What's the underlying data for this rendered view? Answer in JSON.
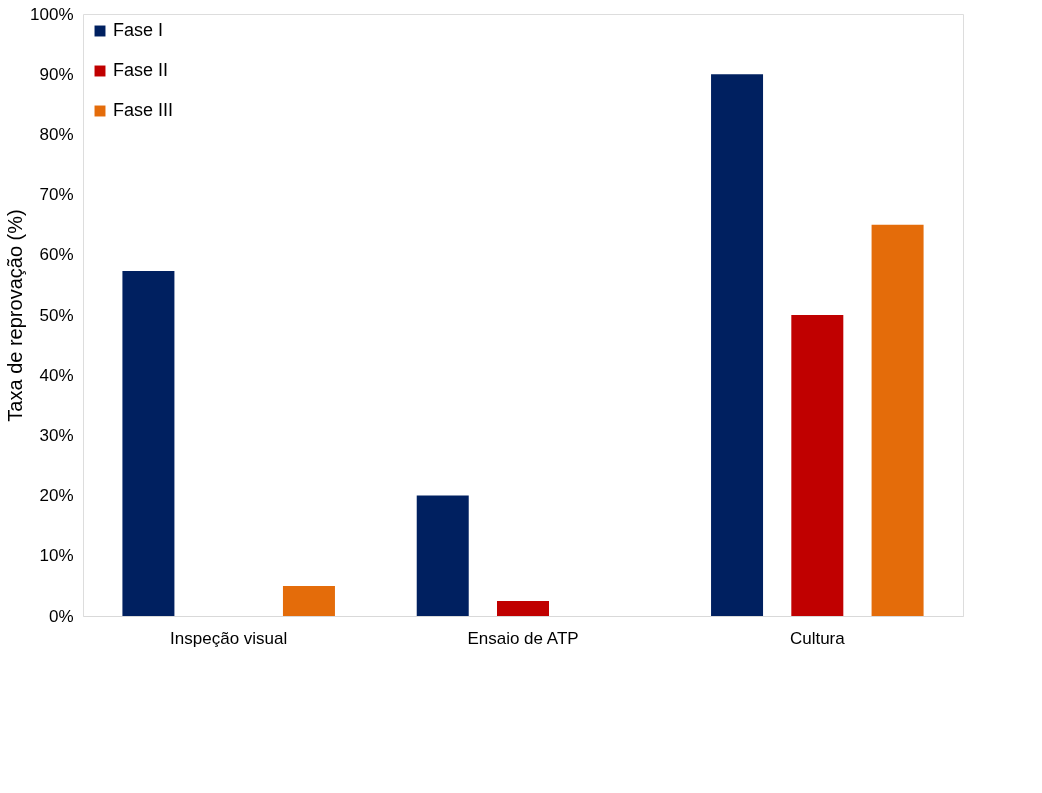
{
  "chart_data": {
    "type": "bar",
    "ylabel": "Taxa de reprovação (%)",
    "categories": [
      "Inspeção visual",
      "Ensaio de ATP",
      "Cultura"
    ],
    "series": [
      {
        "name": "Fase I",
        "color": "#002060",
        "values": [
          57.3,
          20,
          90
        ]
      },
      {
        "name": "Fase II",
        "color": "#c00000",
        "values": [
          0,
          2.5,
          50
        ]
      },
      {
        "name": "Fase III",
        "color": "#e46c0a",
        "values": [
          5,
          0,
          65
        ]
      }
    ],
    "ylim": [
      0,
      100
    ],
    "yticks": [
      {
        "value": 0,
        "label": "0%"
      },
      {
        "value": 10,
        "label": "10%"
      },
      {
        "value": 20,
        "label": "20%"
      },
      {
        "value": 30,
        "label": "30%"
      },
      {
        "value": 40,
        "label": "40%"
      },
      {
        "value": 50,
        "label": "50%"
      },
      {
        "value": 60,
        "label": "60%"
      },
      {
        "value": 70,
        "label": "70%"
      },
      {
        "value": 80,
        "label": "80%"
      },
      {
        "value": 90,
        "label": "90%"
      },
      {
        "value": 100,
        "label": "100%"
      }
    ],
    "grid": false,
    "legend": "top left"
  }
}
